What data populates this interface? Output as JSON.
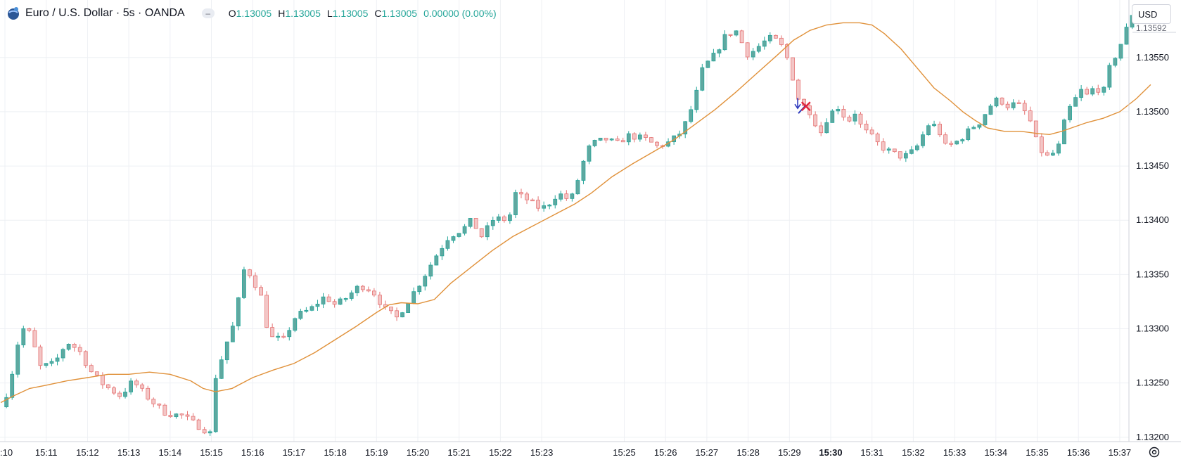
{
  "header": {
    "symbol_title": "Euro / U.S. Dollar · 5s · OANDA",
    "ohlc": [
      {
        "key": "O",
        "value": "1.13005"
      },
      {
        "key": "H",
        "value": "1.13005"
      },
      {
        "key": "L",
        "value": "1.13005"
      },
      {
        "key": "C",
        "value": "1.13005"
      }
    ],
    "change": "0.00000 (0.00%)"
  },
  "currency_button": {
    "label": "USD"
  },
  "price_axis": {
    "top_clipped_label": "1.13592"
  },
  "colors": {
    "up": "#26a69a",
    "down": "#ef9a9a",
    "ma_line": "#e0913a",
    "grid": "#eef0f4",
    "axis_text": "#131722"
  },
  "chart_data": {
    "type": "candlestick",
    "x_ticks": [
      {
        "label": ":10",
        "t": 0
      },
      {
        "label": "15:11",
        "t": 1
      },
      {
        "label": "15:12",
        "t": 2
      },
      {
        "label": "15:13",
        "t": 3
      },
      {
        "label": "15:14",
        "t": 4
      },
      {
        "label": "15:15",
        "t": 5
      },
      {
        "label": "15:16",
        "t": 6
      },
      {
        "label": "15:17",
        "t": 7
      },
      {
        "label": "15:18",
        "t": 8
      },
      {
        "label": "15:19",
        "t": 9
      },
      {
        "label": "15:20",
        "t": 10
      },
      {
        "label": "15:21",
        "t": 11
      },
      {
        "label": "15:22",
        "t": 12
      },
      {
        "label": "15:23",
        "t": 13
      },
      {
        "label": "15:25",
        "t": 15
      },
      {
        "label": "15:26",
        "t": 16
      },
      {
        "label": "15:27",
        "t": 17
      },
      {
        "label": "15:28",
        "t": 18
      },
      {
        "label": "15:29",
        "t": 19
      },
      {
        "label": "15:30",
        "t": 20,
        "bold": true
      },
      {
        "label": "15:31",
        "t": 21
      },
      {
        "label": "15:32",
        "t": 22
      },
      {
        "label": "15:33",
        "t": 23
      },
      {
        "label": "15:34",
        "t": 24
      },
      {
        "label": "15:35",
        "t": 25
      },
      {
        "label": "15:36",
        "t": 26
      },
      {
        "label": "15:37",
        "t": 27
      }
    ],
    "y_ticks": [
      "1.13550",
      "1.13500",
      "1.13450",
      "1.13400",
      "1.13350",
      "1.13300",
      "1.13250",
      "1.13200"
    ],
    "y_tick_values": [
      1.1355,
      1.135,
      1.1345,
      1.134,
      1.1335,
      1.133,
      1.1325,
      1.132
    ],
    "ylim": [
      1.13196,
      1.13603
    ],
    "close_path": [
      [
        -0.1,
        1.13228
      ],
      [
        0.1,
        1.13245
      ],
      [
        0.3,
        1.13285
      ],
      [
        0.5,
        1.13305
      ],
      [
        0.7,
        1.13285
      ],
      [
        0.85,
        1.13265
      ],
      [
        1.2,
        1.13268
      ],
      [
        1.5,
        1.13288
      ],
      [
        1.8,
        1.1328
      ],
      [
        2.05,
        1.13262
      ],
      [
        2.4,
        1.13248
      ],
      [
        2.8,
        1.13238
      ],
      [
        3.1,
        1.13252
      ],
      [
        3.5,
        1.13235
      ],
      [
        3.9,
        1.13222
      ],
      [
        4.3,
        1.1322
      ],
      [
        4.7,
        1.1321
      ],
      [
        5.0,
        1.13203
      ],
      [
        5.1,
        1.13255
      ],
      [
        5.35,
        1.13285
      ],
      [
        5.6,
        1.1331
      ],
      [
        5.75,
        1.13355
      ],
      [
        5.95,
        1.1335
      ],
      [
        6.2,
        1.1333
      ],
      [
        6.4,
        1.13292
      ],
      [
        6.75,
        1.1329
      ],
      [
        7.05,
        1.13312
      ],
      [
        7.4,
        1.13318
      ],
      [
        7.75,
        1.1333
      ],
      [
        8.0,
        1.13322
      ],
      [
        8.25,
        1.13328
      ],
      [
        8.6,
        1.1334
      ],
      [
        8.9,
        1.13335
      ],
      [
        9.2,
        1.13318
      ],
      [
        9.5,
        1.1331
      ],
      [
        9.75,
        1.13325
      ],
      [
        10.1,
        1.13345
      ],
      [
        10.4,
        1.13365
      ],
      [
        10.75,
        1.13385
      ],
      [
        11.1,
        1.13392
      ],
      [
        11.3,
        1.134
      ],
      [
        11.55,
        1.13385
      ],
      [
        11.85,
        1.13402
      ],
      [
        12.2,
        1.134
      ],
      [
        12.35,
        1.13425
      ],
      [
        12.7,
        1.13418
      ],
      [
        12.9,
        1.13412
      ],
      [
        13.1,
        1.13412
      ],
      [
        13.4,
        1.13425
      ],
      [
        13.7,
        1.13418
      ],
      [
        13.9,
        1.1344
      ],
      [
        14.1,
        1.13465
      ],
      [
        14.3,
        1.13472
      ],
      [
        14.6,
        1.13475
      ],
      [
        14.8,
        1.1347
      ],
      [
        15.1,
        1.13478
      ],
      [
        15.5,
        1.13475
      ],
      [
        15.8,
        1.13468
      ],
      [
        16.1,
        1.13472
      ],
      [
        16.4,
        1.13482
      ],
      [
        16.7,
        1.1351
      ],
      [
        16.9,
        1.1354
      ],
      [
        17.2,
        1.13553
      ],
      [
        17.45,
        1.1357
      ],
      [
        17.7,
        1.13575
      ],
      [
        18.0,
        1.13552
      ],
      [
        18.25,
        1.1356
      ],
      [
        18.5,
        1.13568
      ],
      [
        18.75,
        1.13565
      ],
      [
        19.0,
        1.13545
      ],
      [
        19.1,
        1.13528
      ],
      [
        19.25,
        1.13508
      ],
      [
        19.5,
        1.135
      ],
      [
        19.75,
        1.1348
      ],
      [
        19.95,
        1.13497
      ],
      [
        20.2,
        1.13505
      ],
      [
        20.4,
        1.1349
      ],
      [
        20.6,
        1.135
      ],
      [
        20.75,
        1.13485
      ],
      [
        21.05,
        1.13475
      ],
      [
        21.2,
        1.13468
      ],
      [
        21.5,
        1.13462
      ],
      [
        21.75,
        1.13458
      ],
      [
        22.05,
        1.13465
      ],
      [
        22.25,
        1.1348
      ],
      [
        22.4,
        1.1349
      ],
      [
        22.6,
        1.13485
      ],
      [
        22.75,
        1.13468
      ],
      [
        22.95,
        1.1347
      ],
      [
        23.15,
        1.13475
      ],
      [
        23.4,
        1.13485
      ],
      [
        23.6,
        1.1349
      ],
      [
        23.85,
        1.13505
      ],
      [
        24.05,
        1.13512
      ],
      [
        24.3,
        1.13505
      ],
      [
        24.5,
        1.13508
      ],
      [
        24.7,
        1.135
      ],
      [
        24.85,
        1.1349
      ],
      [
        25.0,
        1.1347
      ],
      [
        25.2,
        1.13458
      ],
      [
        25.35,
        1.1346
      ],
      [
        25.55,
        1.1347
      ],
      [
        25.7,
        1.13498
      ],
      [
        25.9,
        1.1351
      ],
      [
        26.05,
        1.1352
      ],
      [
        26.2,
        1.13515
      ],
      [
        26.45,
        1.13525
      ],
      [
        26.55,
        1.1351
      ],
      [
        26.75,
        1.1354
      ],
      [
        27.0,
        1.1356
      ],
      [
        27.15,
        1.13575
      ],
      [
        27.3,
        1.1359
      ]
    ],
    "moving_average": [
      [
        -0.1,
        1.13232
      ],
      [
        0.2,
        1.13238
      ],
      [
        0.6,
        1.13245
      ],
      [
        1.0,
        1.13248
      ],
      [
        1.5,
        1.13252
      ],
      [
        2.0,
        1.13255
      ],
      [
        2.5,
        1.13258
      ],
      [
        3.0,
        1.13258
      ],
      [
        3.5,
        1.1326
      ],
      [
        4.0,
        1.13258
      ],
      [
        4.5,
        1.13252
      ],
      [
        4.8,
        1.13245
      ],
      [
        5.1,
        1.13242
      ],
      [
        5.5,
        1.13245
      ],
      [
        6.0,
        1.13255
      ],
      [
        6.5,
        1.13262
      ],
      [
        7.0,
        1.13268
      ],
      [
        7.5,
        1.13278
      ],
      [
        8.0,
        1.1329
      ],
      [
        8.5,
        1.13302
      ],
      [
        9.0,
        1.13315
      ],
      [
        9.3,
        1.13322
      ],
      [
        9.6,
        1.13324
      ],
      [
        10.0,
        1.13323
      ],
      [
        10.4,
        1.13327
      ],
      [
        10.8,
        1.13342
      ],
      [
        11.3,
        1.13357
      ],
      [
        11.8,
        1.13372
      ],
      [
        12.3,
        1.13385
      ],
      [
        12.8,
        1.13395
      ],
      [
        13.3,
        1.13405
      ],
      [
        13.8,
        1.13415
      ],
      [
        14.2,
        1.13425
      ],
      [
        14.7,
        1.1344
      ],
      [
        15.2,
        1.13452
      ],
      [
        15.7,
        1.13463
      ],
      [
        16.2,
        1.13474
      ],
      [
        16.7,
        1.13488
      ],
      [
        17.2,
        1.13502
      ],
      [
        17.7,
        1.13518
      ],
      [
        18.2,
        1.13535
      ],
      [
        18.7,
        1.13552
      ],
      [
        19.1,
        1.13566
      ],
      [
        19.5,
        1.13575
      ],
      [
        19.9,
        1.1358
      ],
      [
        20.3,
        1.13582
      ],
      [
        20.7,
        1.13582
      ],
      [
        21.0,
        1.1358
      ],
      [
        21.3,
        1.13572
      ],
      [
        21.7,
        1.13558
      ],
      [
        22.1,
        1.1354
      ],
      [
        22.5,
        1.13522
      ],
      [
        22.9,
        1.1351
      ],
      [
        23.2,
        1.135
      ],
      [
        23.5,
        1.13492
      ],
      [
        23.8,
        1.13485
      ],
      [
        24.2,
        1.13482
      ],
      [
        24.6,
        1.13482
      ],
      [
        25.0,
        1.1348
      ],
      [
        25.3,
        1.13479
      ],
      [
        25.6,
        1.13482
      ],
      [
        25.9,
        1.13486
      ],
      [
        26.2,
        1.1349
      ],
      [
        26.6,
        1.13494
      ],
      [
        27.0,
        1.135
      ],
      [
        27.4,
        1.13512
      ],
      [
        27.75,
        1.13525
      ]
    ],
    "markers": [
      {
        "kind": "down-arrow",
        "t": 19.2,
        "price": 1.13505,
        "color": "#2f3bbd"
      },
      {
        "kind": "cross",
        "t": 19.4,
        "price": 1.13505,
        "color": "#e0243b"
      }
    ],
    "candle_count": 200,
    "candles_per_minute": 12
  }
}
